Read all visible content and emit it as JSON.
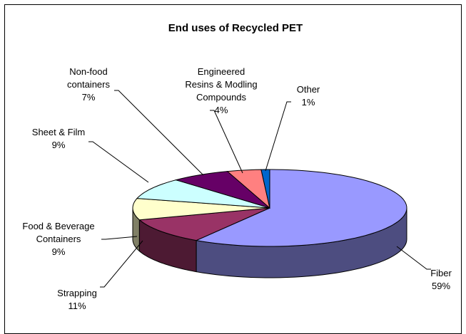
{
  "chart_data": {
    "type": "pie",
    "title": "End uses of Recycled PET",
    "style": "3d-exploded-none",
    "categories": [
      "Fiber",
      "Strapping",
      "Food & Beverage Containers",
      "Sheet & Film",
      "Non-food containers",
      "Engineered Resins & Modling Compounds",
      "Other"
    ],
    "values": [
      59,
      11,
      9,
      9,
      7,
      4,
      1
    ],
    "value_labels": [
      "59%",
      "11%",
      "9%",
      "9%",
      "7%",
      "4%",
      "1%"
    ],
    "label_lines": [
      [
        "Fiber"
      ],
      [
        "Strapping"
      ],
      [
        "Food & Beverage",
        "Containers"
      ],
      [
        "Sheet & Film"
      ],
      [
        "Non-food",
        "containers"
      ],
      [
        "Engineered",
        "Resins & Modling",
        "Compounds"
      ],
      [
        "Other"
      ]
    ],
    "colors": [
      "#9999FF",
      "#993366",
      "#FFFFCC",
      "#CCFFFF",
      "#660066",
      "#FF8080",
      "#0066CC"
    ],
    "legend": "none"
  }
}
